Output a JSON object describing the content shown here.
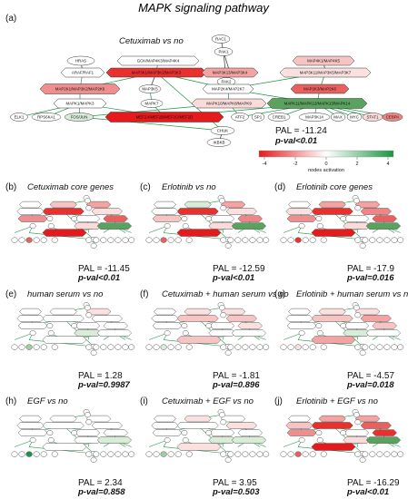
{
  "title": "MAPK signaling pathway",
  "main": {
    "panel_label": "(a)",
    "comparison": "Cetuximab vs no",
    "pal": "PAL = -11.24",
    "pval": "p-val<0.01",
    "colorbar": {
      "label": "nodes activation",
      "ticks": [
        "-4",
        "-2",
        "0",
        "2",
        "4"
      ],
      "colors": {
        "low": "#e41a1c",
        "mid": "#ffffff",
        "high": "#1a9641"
      }
    },
    "nodes": [
      {
        "id": "rac1",
        "label": "RAC1",
        "shape": "ellipse",
        "fill": "#ffffff"
      },
      {
        "id": "pak1",
        "label": "PAK1",
        "shape": "ellipse",
        "fill": "#ffffff"
      },
      {
        "id": "pak2",
        "label": "PAK2",
        "shape": "ellipse",
        "fill": "#ffffff"
      },
      {
        "id": "hras",
        "label": "HRAS",
        "shape": "ellipse",
        "fill": "#ffffff"
      },
      {
        "id": "araf",
        "label": "ARAF/RAF1",
        "shape": "hex",
        "fill": "#ffffff"
      },
      {
        "id": "gck",
        "label": "GCK/MAP4K3/MAP4K4",
        "shape": "hex",
        "fill": "#ffffff"
      },
      {
        "id": "map3k1",
        "label": "MAP3K1/MAP3K2/MAP3K3",
        "shape": "hex",
        "fill": "#e8312f"
      },
      {
        "id": "map3k4",
        "label": "MAP3K13/MAP3K4",
        "shape": "hex",
        "fill": "#f4a3a3"
      },
      {
        "id": "map4k1",
        "label": "MAP4K1/MAP4K5",
        "shape": "hex",
        "fill": "#f7c4c4"
      },
      {
        "id": "map3k11",
        "label": "MAP3K11/MAP3K5/MAP3K7",
        "shape": "hex",
        "fill": "#fbe0e0"
      },
      {
        "id": "map2k1",
        "label": "MAP2K1/MAP2K2/MAP2K6",
        "shape": "hex",
        "fill": "#ef8e8e"
      },
      {
        "id": "map2k4",
        "label": "MAP2K4/MAP2K7",
        "shape": "hex",
        "fill": "#ffffff"
      },
      {
        "id": "map2k3",
        "label": "MAP2K3/MAP2K6",
        "shape": "hex",
        "fill": "#e8615e"
      },
      {
        "id": "map3k5",
        "label": "MAP3K5",
        "shape": "ellipse",
        "fill": "#ffffff"
      },
      {
        "id": "mapk1",
        "label": "MAPK1/MAPK3",
        "shape": "hex",
        "fill": "#ffffff"
      },
      {
        "id": "mapk7",
        "label": "MAPK7",
        "shape": "ellipse",
        "fill": "#ffffff"
      },
      {
        "id": "mapk10",
        "label": "MAPK10/MAPK8/MAPK9",
        "shape": "hex",
        "fill": "#fbdada"
      },
      {
        "id": "mapk11",
        "label": "MAPK11/MAPK12/MAPK13/MAPK14",
        "shape": "hex",
        "fill": "#5aa25d"
      },
      {
        "id": "elk1",
        "label": "ELK1",
        "shape": "ellipse",
        "fill": "#ffffff"
      },
      {
        "id": "rps6ka1",
        "label": "RPS6KA1",
        "shape": "ellipse",
        "fill": "#ffffff"
      },
      {
        "id": "fos",
        "label": "FOS/JUN",
        "shape": "ellipse",
        "fill": "#d8ecd8"
      },
      {
        "id": "mef2a",
        "label": "MEF2A/MEF2B/MEF2C/MEF2D",
        "shape": "hex",
        "fill": "#e41a1c"
      },
      {
        "id": "atf2",
        "label": "ATF2",
        "shape": "ellipse",
        "fill": "#ffffff"
      },
      {
        "id": "sp1",
        "label": "SP1",
        "shape": "ellipse",
        "fill": "#ffffff"
      },
      {
        "id": "creb1",
        "label": "CREB1",
        "shape": "ellipse",
        "fill": "#ffffff"
      },
      {
        "id": "mapkap",
        "label": "MAP3K14",
        "shape": "ellipse",
        "fill": "#ffffff"
      },
      {
        "id": "max",
        "label": "MAX",
        "shape": "ellipse",
        "fill": "#ffffff"
      },
      {
        "id": "myc",
        "label": "MYC",
        "shape": "ellipse",
        "fill": "#ffffff"
      },
      {
        "id": "stat1",
        "label": "STAT1",
        "shape": "ellipse",
        "fill": "#fbdada"
      },
      {
        "id": "cebpa",
        "label": "CEBPA",
        "shape": "ellipse",
        "fill": "#f08585"
      },
      {
        "id": "chuk",
        "label": "CHUK",
        "shape": "ellipse",
        "fill": "#ffffff"
      },
      {
        "id": "ikbkb",
        "label": "IKBKB",
        "shape": "ellipse",
        "fill": "#ffffff"
      }
    ]
  },
  "panels": [
    {
      "label": "(b)",
      "title": "Cetuximab core genes",
      "pal": "PAL = -11.45",
      "pval": "p-val<0.01",
      "hex": [
        "#ffffff",
        "#f7c4c4",
        "#e8312f",
        "#ffffff",
        "#f4a3a3",
        "#fbe0e0",
        "#ef8e8e",
        "#ffffff",
        "#e8615e",
        "#fbdada",
        "#5aa25d",
        "#e41a1c"
      ],
      "acc": "#e8615e"
    },
    {
      "label": "(c)",
      "title": "Erlotinib vs no",
      "pal": "PAL = -12.59",
      "pval": "p-val<0.01",
      "hex": [
        "#ffffff",
        "#d8ecd8",
        "#e8312f",
        "#ffffff",
        "#f4a3a3",
        "#fbe0e0",
        "#f7c4c4",
        "#ffffff",
        "#f08585",
        "#fbdada",
        "#5aa25d",
        "#e41a1c"
      ],
      "acc": "#e8615e"
    },
    {
      "label": "(d)",
      "title": "Erlotinib core genes",
      "pal": "PAL = -17.9",
      "pval": "p-val=0.016",
      "hex": [
        "#ffffff",
        "#f4a3a3",
        "#e8312f",
        "#fbe0e0",
        "#f4a3a3",
        "#f08585",
        "#ef8e8e",
        "#ffffff",
        "#e8615e",
        "#fbdada",
        "#5aa25d",
        "#e41a1c"
      ],
      "acc": "#e8312f"
    },
    {
      "label": "(e)",
      "title": "human serum vs no",
      "pal": "PAL = 1.28",
      "pval": "p-val=0.9987",
      "hex": [
        "#ffffff",
        "#ffffff",
        "#ffffff",
        "#ffffff",
        "#fbe0e0",
        "#ffffff",
        "#ffffff",
        "#ffffff",
        "#ffffff",
        "#d8ecd8",
        "#ffffff",
        "#ffffff"
      ],
      "acc": "#9fd09f"
    },
    {
      "label": "(f)",
      "title": "Cetuximab + human serum vs no",
      "pal": "PAL = -1.81",
      "pval": "p-val=0.896",
      "hex": [
        "#ffffff",
        "#fbe0e0",
        "#f7c4c4",
        "#ffffff",
        "#fbe0e0",
        "#f7c4c4",
        "#ffffff",
        "#ffffff",
        "#fbe0e0",
        "#ffffff",
        "#ffffff",
        "#f7c4c4"
      ],
      "acc": "#d8ecd8"
    },
    {
      "label": "(g)",
      "title": "Erlotinib + human serum vs no",
      "pal": "PAL = -4.57",
      "pval": "p-val=0.018",
      "hex": [
        "#ffffff",
        "#fbe0e0",
        "#f7c4c4",
        "#ffffff",
        "#fbe0e0",
        "#f4a3a3",
        "#ffffff",
        "#ffffff",
        "#f7c4c4",
        "#d8ecd8",
        "#ffffff",
        "#f4a3a3"
      ],
      "acc": "#fbe0e0"
    },
    {
      "label": "(h)",
      "title": "EGF vs no",
      "pal": "PAL = 2.34",
      "pval": "p-val=0.858",
      "hex": [
        "#ffffff",
        "#ffffff",
        "#ffffff",
        "#ffffff",
        "#ffffff",
        "#ffffff",
        "#ffffff",
        "#ffffff",
        "#ffffff",
        "#ffffff",
        "#d8ecd8",
        "#ffffff"
      ],
      "acc": "#1a9641"
    },
    {
      "label": "(i)",
      "title": "Cetuximab + EGF vs no",
      "pal": "PAL = 3.95",
      "pval": "p-val=0.503",
      "hex": [
        "#ffffff",
        "#fbe0e0",
        "#ffffff",
        "#ffffff",
        "#ffffff",
        "#fbe0e0",
        "#ffffff",
        "#ffffff",
        "#ffffff",
        "#d8ecd8",
        "#d8ecd8",
        "#fbe0e0"
      ],
      "acc": "#9fd09f"
    },
    {
      "label": "(j)",
      "title": "Erlotinib + EGF vs no",
      "pal": "PAL = -16.29",
      "pval": "p-val<0.01",
      "hex": [
        "#ffffff",
        "#f4a3a3",
        "#e8312f",
        "#f7c4c4",
        "#f4a3a3",
        "#e8615e",
        "#ef8e8e",
        "#ffffff",
        "#e8312f",
        "#fbdada",
        "#5aa25d",
        "#e41a1c"
      ],
      "acc": "#e8615e"
    }
  ]
}
